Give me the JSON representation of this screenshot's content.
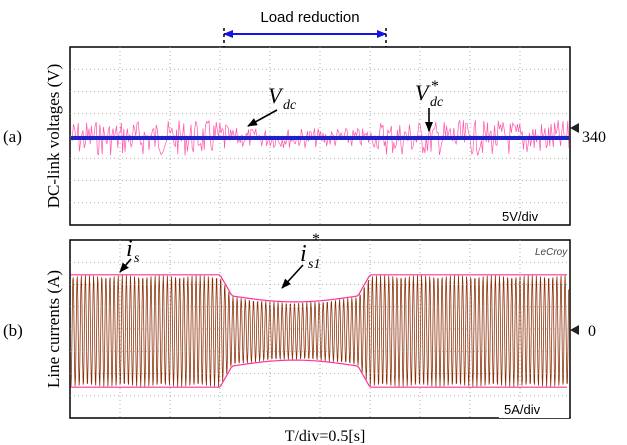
{
  "annotation": {
    "text": "Load reduction",
    "color": "#1515e0"
  },
  "time_scale": "T/div=0.5[s]",
  "chart_data": [
    {
      "panel": "(a)",
      "type": "line",
      "ylabel": "DC-link voltages (V)",
      "scale": "5V/div",
      "ref_marker": "340",
      "divisions_x": 10,
      "divisions_y": 8,
      "grid": true,
      "series": [
        {
          "name": "V_dc",
          "label_main": "V",
          "label_sub": "dc",
          "color": "#ff55aa",
          "mean": 340,
          "ripple_pp": 1.6,
          "ripple_pp_reduced": 0.9
        },
        {
          "name": "V_dc*",
          "label_main": "V",
          "label_sub": "dc",
          "label_sup": "*",
          "color": "#2020c8",
          "value": 340
        }
      ]
    },
    {
      "panel": "(b)",
      "type": "line",
      "ylabel": "Line currents (A)",
      "scale": "5A/div",
      "ref_marker": "0",
      "brand": "LeCroy",
      "divisions_x": 10,
      "divisions_y": 8,
      "grid": true,
      "series": [
        {
          "name": "i_s",
          "label_main": "i",
          "label_sub": "s",
          "color": "#8b2a00",
          "amplitude_div": 2.5,
          "amplitude_div_reduced": 1.55
        },
        {
          "name": "i_s1*",
          "label_main": "i",
          "label_sub": "s1",
          "label_sup": "*",
          "color": "#ff3399",
          "amplitude_div": 2.5,
          "amplitude_div_reduced": 1.55
        }
      ],
      "load_reduction_interval_div": [
        3.0,
        6.0
      ]
    }
  ]
}
